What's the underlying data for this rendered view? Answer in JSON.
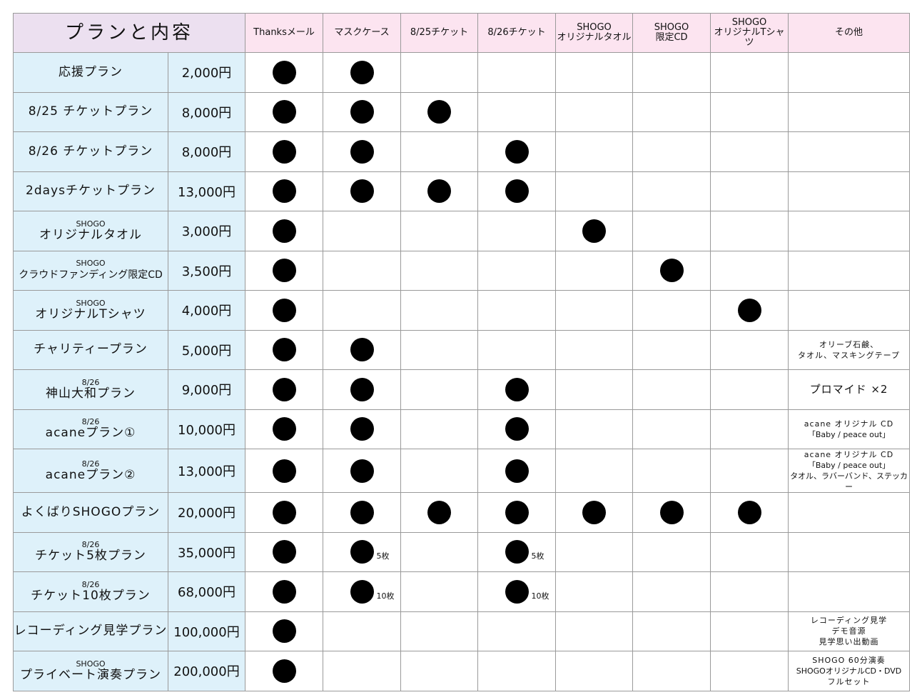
{
  "header": {
    "title": "プランと内容",
    "columns": [
      "Thanksメール",
      "マスクケース",
      "8/25チケット",
      "8/26チケット",
      [
        "SHOGO",
        "オリジナルタオル"
      ],
      [
        "SHOGO",
        "限定CD"
      ],
      [
        "SHOGO",
        "オリジナルTシャツ"
      ],
      "その他"
    ]
  },
  "mark_color": "#000000",
  "colors": {
    "title_bg": "#ece0f0",
    "header_bg": "#fce4f0",
    "plan_bg": "#def1fa",
    "border": "#9a9a9a"
  },
  "rows": [
    {
      "sub": "",
      "name": "応援プラン",
      "price": "2,000円",
      "marks": [
        1,
        1,
        0,
        0,
        0,
        0,
        0
      ],
      "other": []
    },
    {
      "sub": "",
      "name": "8/25 チケットプラン",
      "price": "8,000円",
      "marks": [
        1,
        1,
        1,
        0,
        0,
        0,
        0
      ],
      "other": []
    },
    {
      "sub": "",
      "name": "8/26 チケットプラン",
      "price": "8,000円",
      "marks": [
        1,
        1,
        0,
        1,
        0,
        0,
        0
      ],
      "other": []
    },
    {
      "sub": "",
      "name": "2daysチケットプラン",
      "price": "13,000円",
      "marks": [
        1,
        1,
        1,
        1,
        0,
        0,
        0
      ],
      "other": []
    },
    {
      "sub": "SHOGO",
      "name": "オリジナルタオル",
      "price": "3,000円",
      "marks": [
        1,
        0,
        0,
        0,
        1,
        0,
        0
      ],
      "other": []
    },
    {
      "sub": "SHOGO",
      "name": "クラウドファンディング限定CD",
      "price": "3,500円",
      "marks": [
        1,
        0,
        0,
        0,
        0,
        1,
        0
      ],
      "other": []
    },
    {
      "sub": "SHOGO",
      "name": "オリジナルTシャツ",
      "price": "4,000円",
      "marks": [
        1,
        0,
        0,
        0,
        0,
        0,
        1
      ],
      "other": []
    },
    {
      "sub": "",
      "name": "チャリティープラン",
      "price": "5,000円",
      "marks": [
        1,
        1,
        0,
        0,
        0,
        0,
        0
      ],
      "other": [
        "オリーブ石鹸、",
        "タオル、マスキングテープ"
      ]
    },
    {
      "sub": "8/26",
      "name": "神山大和プラン",
      "price": "9,000円",
      "marks": [
        1,
        1,
        0,
        1,
        0,
        0,
        0
      ],
      "other": [
        "プロマイド ×2"
      ]
    },
    {
      "sub": "8/26",
      "name": "acaneプラン①",
      "price": "10,000円",
      "marks": [
        1,
        1,
        0,
        1,
        0,
        0,
        0
      ],
      "other": [
        "acane オリジナル CD",
        "「Baby / peace out」"
      ]
    },
    {
      "sub": "8/26",
      "name": "acaneプラン②",
      "price": "13,000円",
      "marks": [
        1,
        1,
        0,
        1,
        0,
        0,
        0
      ],
      "other": [
        "acane オリジナル CD",
        "「Baby / peace out」",
        "タオル、ラバーバンド、ステッカー"
      ]
    },
    {
      "sub": "",
      "name": "よくばりSHOGOプラン",
      "price": "20,000円",
      "marks": [
        1,
        1,
        1,
        1,
        1,
        1,
        1
      ],
      "other": []
    },
    {
      "sub": "8/26",
      "name": "チケット5枚プラン",
      "price": "35,000円",
      "marks": [
        1,
        "5枚",
        0,
        "5枚",
        0,
        0,
        0
      ],
      "other": []
    },
    {
      "sub": "8/26",
      "name": "チケット10枚プラン",
      "price": "68,000円",
      "marks": [
        1,
        "10枚",
        0,
        "10枚",
        0,
        0,
        0
      ],
      "other": []
    },
    {
      "sub": "",
      "name": "レコーディング見学プラン",
      "price": "100,000円",
      "marks": [
        1,
        0,
        0,
        0,
        0,
        0,
        0
      ],
      "other": [
        "レコーディング見学",
        "デモ音源",
        "見学思い出動画"
      ]
    },
    {
      "sub": "SHOGO",
      "name": "プライベート演奏プラン",
      "price": "200,000円",
      "marks": [
        1,
        0,
        0,
        0,
        0,
        0,
        0
      ],
      "other": [
        "SHOGO 60分演奏",
        "SHOGOオリジナルCD・DVD",
        "フルセット"
      ]
    }
  ]
}
